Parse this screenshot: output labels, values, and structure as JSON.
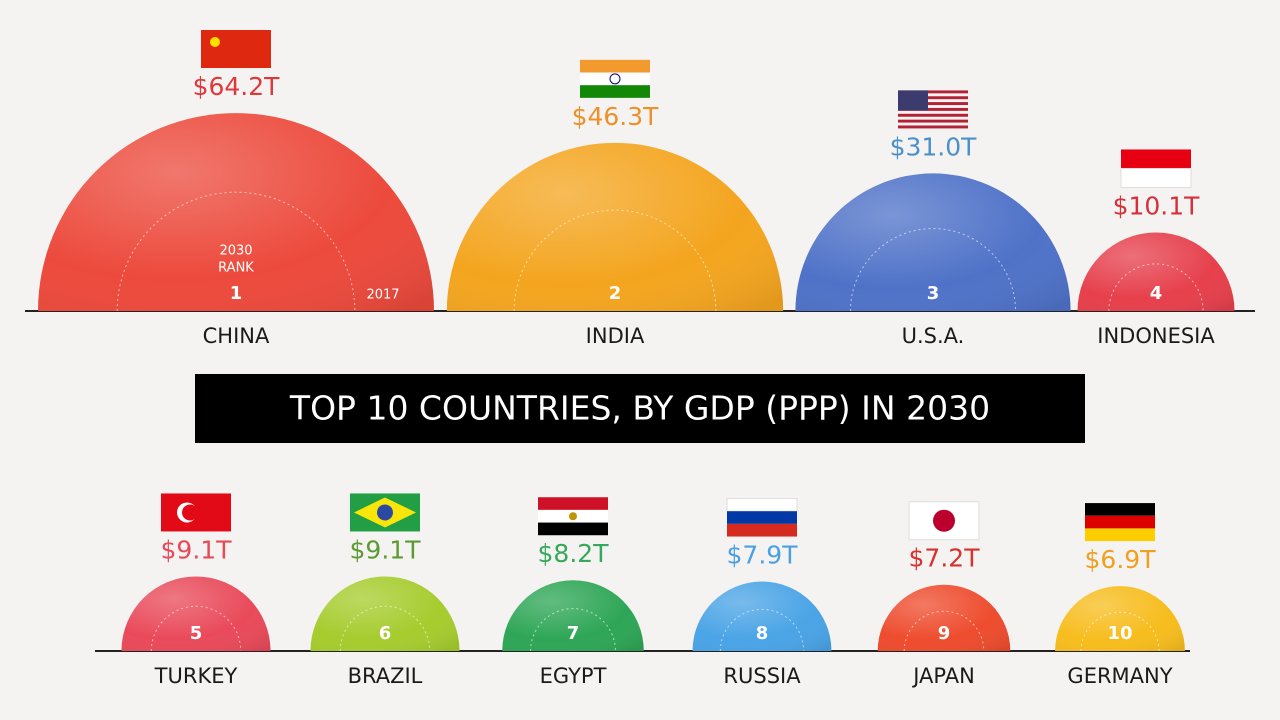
{
  "chart_data": {
    "type": "half-bubble",
    "title": "TOP 10 COUNTRIES, BY GDP (PPP) IN 2030",
    "categories": [
      "CHINA",
      "INDIA",
      "U.S.A.",
      "INDONESIA",
      "TURKEY",
      "BRAZIL",
      "EGYPT",
      "RUSSIA",
      "JAPAN",
      "GERMANY"
    ],
    "values": [
      64.2,
      46.3,
      31.0,
      10.1,
      9.1,
      9.1,
      8.2,
      7.9,
      7.2,
      6.9
    ],
    "value_labels": [
      "$64.2T",
      "$46.3T",
      "$31.0T",
      "$10.1T",
      "$9.1T",
      "$9.1T",
      "$8.2T",
      "$7.9T",
      "$7.2T",
      "$6.9T"
    ],
    "ranks": [
      1,
      2,
      3,
      4,
      5,
      6,
      7,
      8,
      9,
      10
    ],
    "colors": [
      "#ec4a3c",
      "#f4a51f",
      "#4f72c8",
      "#e6404c",
      "#e94a5a",
      "#a6cc2e",
      "#2ea656",
      "#4aa4e6",
      "#ee4c2e",
      "#f7bd1e"
    ],
    "label_colors": [
      "#e0383a",
      "#ee902a",
      "#4a90cc",
      "#d8303a",
      "#e64a58",
      "#5c9a32",
      "#36a85a",
      "#4aa0e0",
      "#d8302f",
      "#f0a020"
    ],
    "rank_note": [
      "2030",
      "RANK"
    ],
    "year_note": "2017"
  }
}
